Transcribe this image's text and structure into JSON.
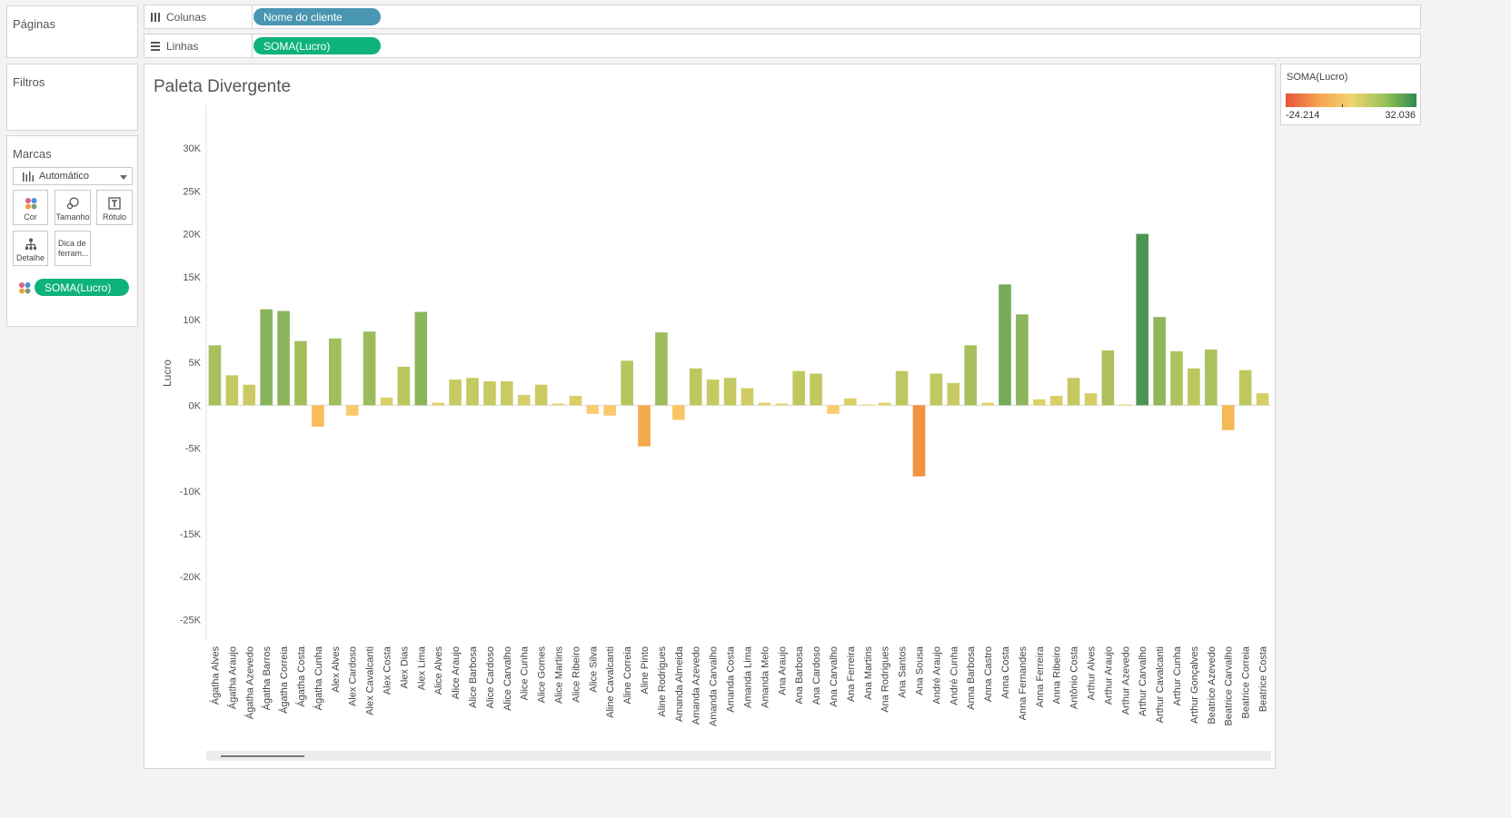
{
  "top_shelves": {
    "columns": {
      "label": "Colunas",
      "pill": "Nome do cliente"
    },
    "rows": {
      "label": "Linhas",
      "pill": "SOMA(Lucro)"
    }
  },
  "side": {
    "pages_title": "Páginas",
    "filters_title": "Filtros",
    "marks": {
      "title": "Marcas",
      "mark_type": "Automático",
      "buttons": {
        "color": "Cor",
        "size": "Tamanho",
        "label": "Rótulo",
        "detail": "Detalhe",
        "tooltip_line1": "Dica de",
        "tooltip_line2": "ferram..."
      },
      "color_pill": "SOMA(Lucro)"
    }
  },
  "legend": {
    "title": "SOMA(Lucro)",
    "min_label": "-24.214",
    "max_label": "32.036",
    "gradient_colors": [
      "#e5533b",
      "#f6a24d",
      "#f0d56f",
      "#9bc45a",
      "#2f8a4e"
    ]
  },
  "chart_data": {
    "type": "bar",
    "title": "Paleta Divergente",
    "ylabel": "Lucro",
    "xlabel": "",
    "ylim": [
      -27500,
      35000
    ],
    "yticks": [
      30000,
      25000,
      20000,
      15000,
      10000,
      5000,
      0,
      -5000,
      -10000,
      -15000,
      -20000,
      -25000
    ],
    "ytick_labels": [
      "30K",
      "25K",
      "20K",
      "15K",
      "10K",
      "5K",
      "0K",
      "-5K",
      "-10K",
      "-15K",
      "-20K",
      "-25K"
    ],
    "color_domain": [
      -24214,
      32036
    ],
    "categories": [
      "Ágatha Alves",
      "Ágatha Araujo",
      "Ágatha Azevedo",
      "Ágatha Barros",
      "Ágatha Correia",
      "Ágatha Costa",
      "Ágatha Cunha",
      "Alex Alves",
      "Alex Cardoso",
      "Alex Cavalcanti",
      "Alex Costa",
      "Alex Dias",
      "Alex Lima",
      "Alice Alves",
      "Alice Araujo",
      "Alice Barbosa",
      "Alice Cardoso",
      "Alice Carvalho",
      "Alice Cunha",
      "Alice Gomes",
      "Alice Martins",
      "Alice Ribeiro",
      "Alice Silva",
      "Aline Cavalcanti",
      "Aline Correia",
      "Aline Pinto",
      "Aline Rodrigues",
      "Amanda Almeida",
      "Amanda Azevedo",
      "Amanda Carvalho",
      "Amanda Costa",
      "Amanda Lima",
      "Amanda Melo",
      "Ana Araujo",
      "Ana Barbosa",
      "Ana Cardoso",
      "Ana Carvalho",
      "Ana Ferreira",
      "Ana Martins",
      "Ana Rodrigues",
      "Ana Santos",
      "Ana Sousa",
      "André Araujo",
      "André Cunha",
      "Anna Barbosa",
      "Anna Castro",
      "Anna Costa",
      "Anna Fernandes",
      "Anna Ferreira",
      "Anna Ribeiro",
      "Antônio Costa",
      "Arthur Alves",
      "Arthur Araujo",
      "Arthur Azevedo",
      "Arthur Carvalho",
      "Arthur Cavalcanti",
      "Arthur Cunha",
      "Arthur Gonçalves",
      "Beatrice Azevedo",
      "Beatrice Carvalho",
      "Beatrice Correia",
      "Beatrice Costa"
    ],
    "values": [
      7000,
      3500,
      2400,
      11200,
      11000,
      7500,
      -2500,
      7800,
      -1200,
      8600,
      900,
      4500,
      10900,
      300,
      3000,
      3200,
      2800,
      2800,
      1200,
      2400,
      200,
      1100,
      -1000,
      -1200,
      5200,
      -4800,
      8500,
      -1700,
      4300,
      3000,
      3200,
      2000,
      300,
      200,
      4000,
      3700,
      -1000,
      800,
      100,
      300,
      4000,
      -8300,
      3700,
      2600,
      7000,
      300,
      14100,
      10600,
      700,
      1100,
      3200,
      1400,
      6400,
      100,
      20000,
      10300,
      6300,
      4300,
      6500,
      -2900,
      4100,
      1400
    ]
  }
}
